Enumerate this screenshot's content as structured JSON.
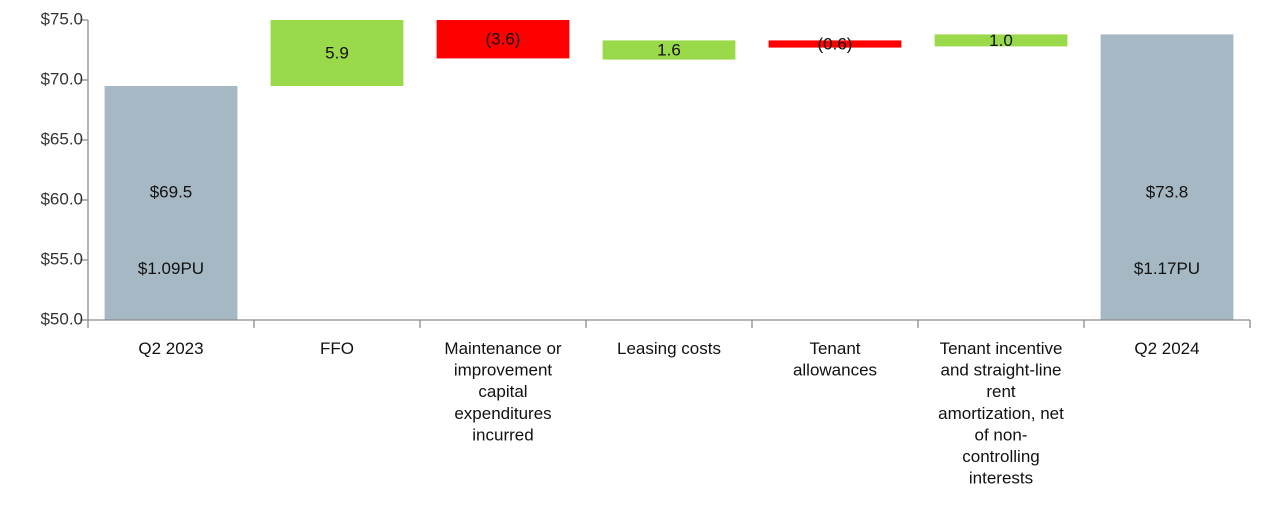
{
  "chart_data": {
    "type": "waterfall",
    "title": "",
    "xlabel": "",
    "ylabel": "",
    "ylim": [
      50,
      75
    ],
    "yticks": [
      50,
      55,
      60,
      65,
      70,
      75
    ],
    "ytick_format": "$",
    "grid": false,
    "legend": "none",
    "colors": {
      "total": "#a5b8c4",
      "increase": "#99d94a",
      "decrease": "#ff0000"
    },
    "items": [
      {
        "category": [
          "Q2 2023"
        ],
        "kind": "total",
        "start": 50,
        "end": 69.5,
        "labels": [
          "$69.5",
          "$1.09PU"
        ]
      },
      {
        "category": [
          "FFO"
        ],
        "kind": "increase",
        "start": 69.5,
        "end": 75.4,
        "labels": [
          "5.9"
        ]
      },
      {
        "category": [
          "Maintenance or",
          "improvement",
          "capital",
          "expenditures",
          "incurred"
        ],
        "kind": "decrease",
        "start": 75.4,
        "end": 71.8,
        "labels": [
          "(3.6)"
        ]
      },
      {
        "category": [
          "Leasing costs"
        ],
        "kind": "increase",
        "start": 71.7,
        "end": 73.3,
        "labels": [
          "1.6"
        ]
      },
      {
        "category": [
          "Tenant",
          "allowances"
        ],
        "kind": "decrease",
        "start": 73.3,
        "end": 72.7,
        "labels": [
          "(0.6)"
        ]
      },
      {
        "category": [
          "Tenant incentive",
          "and straight-line",
          "rent",
          "amortization, net",
          "of non-",
          "controlling",
          "interests"
        ],
        "kind": "increase",
        "start": 72.8,
        "end": 73.8,
        "labels": [
          "1.0"
        ]
      },
      {
        "category": [
          "Q2 2024"
        ],
        "kind": "total",
        "start": 50,
        "end": 73.8,
        "labels": [
          "$73.8",
          "$1.17PU"
        ]
      }
    ]
  }
}
